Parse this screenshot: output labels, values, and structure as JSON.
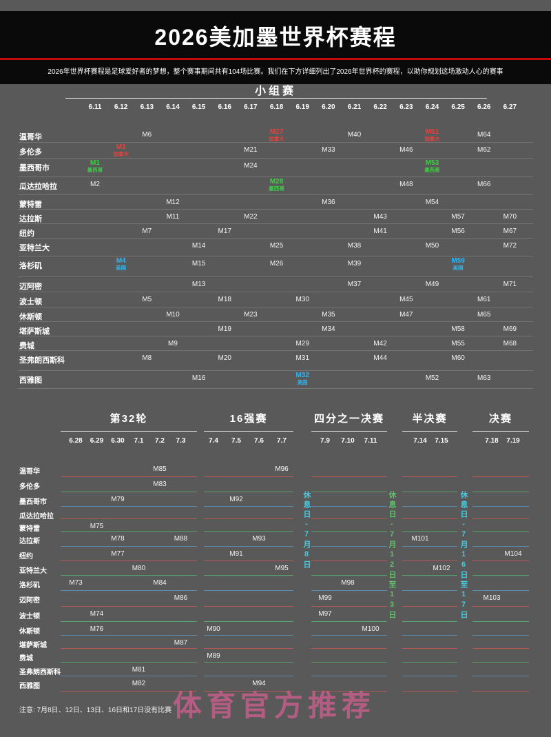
{
  "header": {
    "title": "2026美加墨世界杯赛程",
    "subtitle": "2026年世界杯赛程是足球爱好者的梦想，整个赛事期间共有104场比赛。我们在下方详细列出了2026年世界杯的赛程，以助你规划这场激动人心的赛事"
  },
  "colors": {
    "accent_red": "#c40a0a",
    "canada": "#e8413b",
    "mexico": "#3ecf45",
    "usa": "#31b4ef",
    "group_row_line": "#808080",
    "knockout_line_colors": [
      "#c05a52",
      "#55a868",
      "#5b8fb8"
    ],
    "rest_cyan": "#45cbe0",
    "rest_green": "#5fc16a",
    "watermark_pink": "#f0609f"
  },
  "group_stage": {
    "title": "小组赛",
    "dates": [
      "6.11",
      "6.12",
      "6.13",
      "6.14",
      "6.15",
      "6.16",
      "6.17",
      "6.18",
      "6.19",
      "6.20",
      "6.21",
      "6.22",
      "6.23",
      "6.24",
      "6.25",
      "6.26",
      "6.27"
    ],
    "rows": [
      {
        "city": "温哥华",
        "matches": [
          {
            "date": "6.13",
            "label": "M6"
          },
          {
            "date": "6.18",
            "label": "M27",
            "note": "加拿大",
            "flag": "canada"
          },
          {
            "date": "6.21",
            "label": "M40"
          },
          {
            "date": "6.24",
            "label": "M51",
            "note": "加拿大",
            "flag": "canada"
          },
          {
            "date": "6.26",
            "label": "M64"
          }
        ]
      },
      {
        "city": "多伦多",
        "matches": [
          {
            "date": "6.12",
            "label": "M3",
            "note": "加拿大",
            "flag": "canada"
          },
          {
            "date": "6.17",
            "label": "M21"
          },
          {
            "date": "6.20",
            "label": "M33"
          },
          {
            "date": "6.23",
            "label": "M46"
          },
          {
            "date": "6.26",
            "label": "M62"
          }
        ]
      },
      {
        "city": "墨西哥市",
        "matches": [
          {
            "date": "6.11",
            "label": "M1",
            "note": "墨西哥",
            "flag": "mexico"
          },
          {
            "date": "6.17",
            "label": "M24"
          },
          {
            "date": "6.24",
            "label": "M53",
            "note": "墨西哥",
            "flag": "mexico"
          }
        ]
      },
      {
        "city": "瓜达拉哈拉",
        "matches": [
          {
            "date": "6.11",
            "label": "M2"
          },
          {
            "date": "6.18",
            "label": "M28",
            "note": "墨西哥",
            "flag": "mexico"
          },
          {
            "date": "6.23",
            "label": "M48"
          },
          {
            "date": "6.26",
            "label": "M66"
          }
        ]
      },
      {
        "city": "蒙特雷",
        "matches": [
          {
            "date": "6.14",
            "label": "M12"
          },
          {
            "date": "6.20",
            "label": "M36"
          },
          {
            "date": "6.24",
            "label": "M54"
          }
        ]
      },
      {
        "city": "达拉斯",
        "matches": [
          {
            "date": "6.14",
            "label": "M11"
          },
          {
            "date": "6.17",
            "label": "M22"
          },
          {
            "date": "6.22",
            "label": "M43"
          },
          {
            "date": "6.25",
            "label": "M57"
          },
          {
            "date": "6.27",
            "label": "M70"
          }
        ]
      },
      {
        "city": "纽约",
        "matches": [
          {
            "date": "6.13",
            "label": "M7"
          },
          {
            "date": "6.16",
            "label": "M17"
          },
          {
            "date": "6.22",
            "label": "M41"
          },
          {
            "date": "6.25",
            "label": "M56"
          },
          {
            "date": "6.27",
            "label": "M67"
          }
        ]
      },
      {
        "city": "亚特兰大",
        "matches": [
          {
            "date": "6.15",
            "label": "M14"
          },
          {
            "date": "6.18",
            "label": "M25"
          },
          {
            "date": "6.21",
            "label": "M38"
          },
          {
            "date": "6.24",
            "label": "M50"
          },
          {
            "date": "6.27",
            "label": "M72"
          }
        ]
      },
      {
        "city": "洛杉矶",
        "matches": [
          {
            "date": "6.12",
            "label": "M4",
            "note": "美国",
            "flag": "usa"
          },
          {
            "date": "6.15",
            "label": "M15"
          },
          {
            "date": "6.18",
            "label": "M26"
          },
          {
            "date": "6.21",
            "label": "M39"
          },
          {
            "date": "6.25",
            "label": "M59",
            "note": "美国",
            "flag": "usa"
          }
        ]
      },
      {
        "city": "迈阿密",
        "matches": [
          {
            "date": "6.15",
            "label": "M13"
          },
          {
            "date": "6.21",
            "label": "M37"
          },
          {
            "date": "6.24",
            "label": "M49"
          },
          {
            "date": "6.27",
            "label": "M71"
          }
        ]
      },
      {
        "city": "波士顿",
        "matches": [
          {
            "date": "6.13",
            "label": "M5"
          },
          {
            "date": "6.16",
            "label": "M18"
          },
          {
            "date": "6.19",
            "label": "M30"
          },
          {
            "date": "6.23",
            "label": "M45"
          },
          {
            "date": "6.26",
            "label": "M61"
          }
        ]
      },
      {
        "city": "休斯顿",
        "matches": [
          {
            "date": "6.14",
            "label": "M10"
          },
          {
            "date": "6.17",
            "label": "M23"
          },
          {
            "date": "6.20",
            "label": "M35"
          },
          {
            "date": "6.23",
            "label": "M47"
          },
          {
            "date": "6.26",
            "label": "M65"
          }
        ]
      },
      {
        "city": "堪萨斯城",
        "matches": [
          {
            "date": "6.16",
            "label": "M19"
          },
          {
            "date": "6.20",
            "label": "M34"
          },
          {
            "date": "6.25",
            "label": "M58"
          },
          {
            "date": "6.27",
            "label": "M69"
          }
        ]
      },
      {
        "city": "费城",
        "matches": [
          {
            "date": "6.14",
            "label": "M9"
          },
          {
            "date": "6.19",
            "label": "M29"
          },
          {
            "date": "6.22",
            "label": "M42"
          },
          {
            "date": "6.25",
            "label": "M55"
          },
          {
            "date": "6.27",
            "label": "M68"
          }
        ]
      },
      {
        "city": "圣弗朗西斯科",
        "matches": [
          {
            "date": "6.13",
            "label": "M8"
          },
          {
            "date": "6.16",
            "label": "M20"
          },
          {
            "date": "6.19",
            "label": "M31"
          },
          {
            "date": "6.22",
            "label": "M44"
          },
          {
            "date": "6.25",
            "label": "M60"
          }
        ]
      },
      {
        "city": "西雅图",
        "matches": [
          {
            "date": "6.15",
            "label": "M16"
          },
          {
            "date": "6.19",
            "label": "M32",
            "note": "美国",
            "flag": "usa"
          },
          {
            "date": "6.24",
            "label": "M52"
          },
          {
            "date": "6.26",
            "label": "M63"
          }
        ]
      }
    ]
  },
  "knockout": {
    "blocks": [
      {
        "id": "r32",
        "title": "第32轮",
        "dates": [
          "6.28",
          "6.29",
          "6.30",
          "7.1",
          "7.2",
          "7.3"
        ]
      },
      {
        "id": "r16",
        "title": "16强赛",
        "dates": [
          "7.4",
          "7.5",
          "7.6",
          "7.7"
        ]
      },
      {
        "id": "qf",
        "title": "四分之一决赛",
        "dates": [
          "7.9",
          "7.10",
          "7.11"
        ]
      },
      {
        "id": "sf",
        "title": "半决赛",
        "dates": [
          "7.14",
          "7.15"
        ]
      },
      {
        "id": "fin",
        "title": "决赛",
        "dates": [
          "7.18",
          "7.19"
        ]
      }
    ],
    "rows": [
      {
        "city": "温哥华",
        "matches": [
          {
            "date": "7.2",
            "label": "M85"
          },
          {
            "date": "7.7",
            "label": "M96"
          }
        ]
      },
      {
        "city": "多伦多",
        "matches": [
          {
            "date": "7.2",
            "label": "M83"
          }
        ]
      },
      {
        "city": "墨西哥市",
        "matches": [
          {
            "date": "6.30",
            "label": "M79"
          },
          {
            "date": "7.5",
            "label": "M92"
          }
        ]
      },
      {
        "city": "瓜达拉哈拉",
        "matches": []
      },
      {
        "city": "蒙特雷",
        "matches": [
          {
            "date": "6.29",
            "label": "M75"
          }
        ]
      },
      {
        "city": "达拉斯",
        "matches": [
          {
            "date": "6.30",
            "label": "M78"
          },
          {
            "date": "7.3",
            "label": "M88"
          },
          {
            "date": "7.6",
            "label": "M93"
          },
          {
            "date": "7.14",
            "label": "M101"
          }
        ]
      },
      {
        "city": "纽约",
        "matches": [
          {
            "date": "6.30",
            "label": "M77"
          },
          {
            "date": "7.5",
            "label": "M91"
          },
          {
            "date": "7.19",
            "label": "M104"
          }
        ]
      },
      {
        "city": "亚特兰大",
        "matches": [
          {
            "date": "7.1",
            "label": "M80"
          },
          {
            "date": "7.7",
            "label": "M95"
          },
          {
            "date": "7.15",
            "label": "M102"
          }
        ]
      },
      {
        "city": "洛杉矶",
        "matches": [
          {
            "date": "6.28",
            "label": "M73"
          },
          {
            "date": "7.2",
            "label": "M84"
          },
          {
            "date": "7.10",
            "label": "M98"
          }
        ]
      },
      {
        "city": "迈阿密",
        "matches": [
          {
            "date": "7.3",
            "label": "M86"
          },
          {
            "date": "7.9",
            "label": "M99"
          },
          {
            "date": "7.18",
            "label": "M103"
          }
        ]
      },
      {
        "city": "波士顿",
        "matches": [
          {
            "date": "6.29",
            "label": "M74"
          },
          {
            "date": "7.9",
            "label": "M97"
          }
        ]
      },
      {
        "city": "休斯顿",
        "matches": [
          {
            "date": "6.29",
            "label": "M76"
          },
          {
            "date": "7.4",
            "label": "M90"
          },
          {
            "date": "7.11",
            "label": "M100"
          }
        ]
      },
      {
        "city": "堪萨斯城",
        "matches": [
          {
            "date": "7.3",
            "label": "M87"
          }
        ]
      },
      {
        "city": "费城",
        "matches": [
          {
            "date": "7.4",
            "label": "M89"
          }
        ]
      },
      {
        "city": "圣弗朗西斯科",
        "matches": [
          {
            "date": "7.1",
            "label": "M81"
          }
        ]
      },
      {
        "city": "西雅图",
        "matches": [
          {
            "date": "7.1",
            "label": "M82"
          },
          {
            "date": "7.6",
            "label": "M94"
          }
        ]
      }
    ],
    "rest_notes": [
      {
        "text": "休息日-7月8日",
        "color_key": "rest_cyan"
      },
      {
        "text": "休息日-7月12日至13日",
        "color_key": "rest_green"
      },
      {
        "text": "休息日-7月16日至17日",
        "color_key": "rest_cyan"
      }
    ]
  },
  "footer": {
    "note": "注意: 7月8日、12日、13日、16日和17日没有比赛",
    "watermark": "体育官方推荐"
  }
}
